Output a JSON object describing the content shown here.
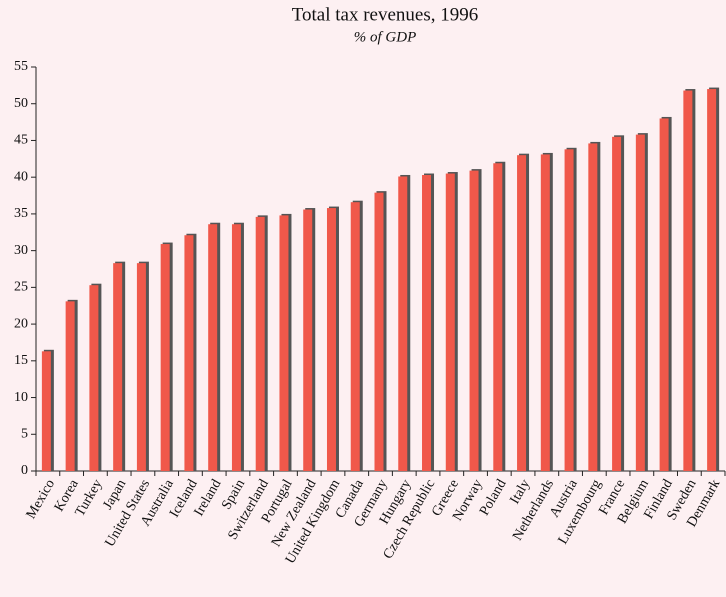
{
  "chart_data": {
    "type": "bar",
    "title": "Total tax revenues, 1996",
    "subtitle": "% of GDP",
    "categories": [
      "Mexico",
      "Korea",
      "Turkey",
      "Japan",
      "United States",
      "Australia",
      "Iceland",
      "Ireland",
      "Spain",
      "Switzerland",
      "Portugal",
      "New Zealand",
      "United Kingdom",
      "Canada",
      "Germany",
      "Hungary",
      "Czech Republic",
      "Greece",
      "Norway",
      "Poland",
      "Italy",
      "Netherlands",
      "Austria",
      "Luxembourg",
      "France",
      "Belgium",
      "Finland",
      "Sweden",
      "Denmark"
    ],
    "values": [
      16.5,
      23.3,
      25.5,
      28.5,
      28.5,
      31.1,
      32.3,
      33.8,
      33.8,
      34.8,
      35.0,
      35.8,
      36.0,
      36.8,
      38.1,
      40.3,
      40.5,
      40.7,
      41.1,
      42.1,
      43.2,
      43.3,
      44.0,
      44.8,
      45.7,
      46.0,
      48.2,
      52.0,
      52.2
    ],
    "color": "#f0584a",
    "ylim": [
      0,
      55
    ],
    "yticks": [
      0,
      5,
      10,
      15,
      20,
      25,
      30,
      35,
      40,
      45,
      50,
      55
    ],
    "grid": false
  }
}
